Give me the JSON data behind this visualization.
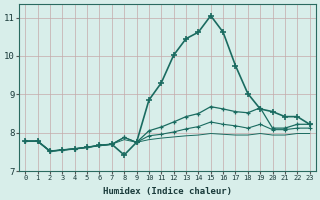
{
  "title": "",
  "xlabel": "Humidex (Indice chaleur)",
  "ylabel": "",
  "bg_color": "#d8eeea",
  "grid_color": "#c4aaaa",
  "line_color": "#1a6b60",
  "xlim": [
    -0.5,
    23.5
  ],
  "ylim": [
    7.0,
    11.35
  ],
  "yticks": [
    7,
    8,
    9,
    10,
    11
  ],
  "xticks": [
    0,
    1,
    2,
    3,
    4,
    5,
    6,
    7,
    8,
    9,
    10,
    11,
    12,
    13,
    14,
    15,
    16,
    17,
    18,
    19,
    20,
    21,
    22,
    23
  ],
  "series": [
    {
      "x": [
        0,
        1,
        2,
        3,
        4,
        5,
        6,
        7,
        8,
        9,
        10,
        11,
        12,
        13,
        14,
        15,
        16,
        17,
        18,
        19,
        20,
        21,
        22,
        23
      ],
      "y": [
        7.78,
        7.78,
        7.52,
        7.55,
        7.58,
        7.62,
        7.67,
        7.7,
        7.42,
        7.75,
        8.85,
        9.3,
        10.02,
        10.45,
        10.62,
        11.05,
        10.62,
        9.75,
        9.02,
        8.62,
        8.55,
        8.42,
        8.42,
        8.22
      ],
      "marker": true,
      "lw": 1.2,
      "ms": 4
    },
    {
      "x": [
        0,
        1,
        2,
        3,
        4,
        5,
        6,
        7,
        8,
        9,
        10,
        11,
        12,
        13,
        14,
        15,
        16,
        17,
        18,
        19,
        20,
        21,
        22,
        23
      ],
      "y": [
        7.78,
        7.78,
        7.52,
        7.55,
        7.58,
        7.62,
        7.67,
        7.7,
        7.88,
        7.75,
        8.05,
        8.15,
        8.28,
        8.42,
        8.5,
        8.68,
        8.62,
        8.55,
        8.52,
        8.65,
        8.12,
        8.12,
        8.22,
        8.22
      ],
      "marker": true,
      "lw": 0.9,
      "ms": 3
    },
    {
      "x": [
        0,
        1,
        2,
        3,
        4,
        5,
        6,
        7,
        8,
        9,
        10,
        11,
        12,
        13,
        14,
        15,
        16,
        17,
        18,
        19,
        20,
        21,
        22,
        23
      ],
      "y": [
        7.78,
        7.78,
        7.52,
        7.55,
        7.58,
        7.62,
        7.67,
        7.7,
        7.88,
        7.75,
        7.92,
        7.96,
        8.02,
        8.1,
        8.16,
        8.28,
        8.22,
        8.18,
        8.12,
        8.22,
        8.08,
        8.08,
        8.12,
        8.12
      ],
      "marker": true,
      "lw": 0.8,
      "ms": 2.5
    },
    {
      "x": [
        0,
        1,
        2,
        3,
        4,
        5,
        6,
        7,
        8,
        9,
        10,
        11,
        12,
        13,
        14,
        15,
        16,
        17,
        18,
        19,
        20,
        21,
        22,
        23
      ],
      "y": [
        7.78,
        7.78,
        7.52,
        7.55,
        7.58,
        7.62,
        7.67,
        7.7,
        7.82,
        7.75,
        7.82,
        7.86,
        7.89,
        7.92,
        7.94,
        7.98,
        7.96,
        7.94,
        7.94,
        7.98,
        7.94,
        7.94,
        7.98,
        7.98
      ],
      "marker": false,
      "lw": 0.7,
      "ms": 0
    }
  ]
}
